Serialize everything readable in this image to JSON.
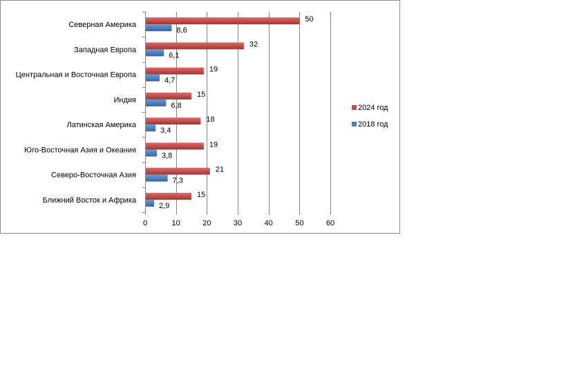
{
  "chart_data": {
    "type": "bar",
    "orientation": "horizontal",
    "categories": [
      "Северная  Америка",
      "Западная Европа",
      "Центральная  и Восточная Европа",
      "Индия",
      "Латинская Америка",
      "Юго-Восточная  Азия и Океания",
      "Северо-Восточная  Азия",
      "Ближний Восток и Африка"
    ],
    "series": [
      {
        "name": "2024 год",
        "color": "#C0504D",
        "values": [
          50,
          32,
          19,
          15,
          18,
          19,
          21,
          15
        ],
        "labels": [
          "50",
          "32",
          "19",
          "15",
          "18",
          "19",
          "21",
          "15"
        ]
      },
      {
        "name": "2018 год",
        "color": "#4F81BD",
        "values": [
          8.6,
          6.1,
          4.7,
          6.8,
          3.4,
          3.8,
          7.3,
          2.9
        ],
        "labels": [
          "8,6",
          "6,1",
          "4,7",
          "6,8",
          "3,4",
          "3,8",
          "7,3",
          "2,9"
        ]
      }
    ],
    "xlim": [
      0,
      60
    ],
    "xticks": [
      0,
      10,
      20,
      30,
      40,
      50,
      60
    ],
    "xtick_labels": [
      "0",
      "10",
      "20",
      "30",
      "40",
      "50",
      "60"
    ],
    "grid": "vertical",
    "legend": {
      "placement": "right",
      "entries": [
        "2024 год",
        "2018 год"
      ]
    }
  }
}
